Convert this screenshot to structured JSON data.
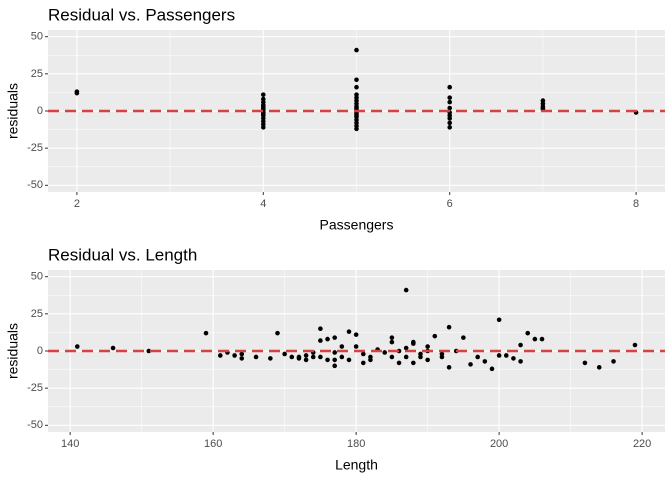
{
  "chart_data": [
    {
      "type": "scatter",
      "title": "Residual vs. Passengers",
      "xlabel": "Passengers",
      "ylabel": "residuals",
      "x": [
        2,
        2,
        4,
        4,
        4,
        4,
        4,
        4,
        4,
        4,
        4,
        4,
        4,
        4,
        4,
        4,
        4,
        5,
        5,
        5,
        5,
        5,
        5,
        5,
        5,
        5,
        5,
        5,
        5,
        5,
        5,
        5,
        5,
        5,
        5,
        5,
        6,
        6,
        6,
        6,
        6,
        6,
        6,
        6,
        6,
        7,
        7,
        7,
        7,
        7,
        8
      ],
      "values": [
        13,
        12,
        11,
        8,
        6,
        4,
        3,
        2,
        1,
        0,
        -1,
        -2,
        -3,
        -5,
        -7,
        -9,
        -11,
        41,
        21,
        16,
        11,
        9,
        7,
        5,
        3,
        2,
        1,
        0,
        -1,
        -2,
        -3,
        -4,
        -6,
        -8,
        -10,
        -12,
        16,
        9,
        6,
        2,
        -1,
        -3,
        -5,
        -8,
        -11,
        7,
        5,
        3,
        2,
        1,
        -1
      ],
      "color": "#000000",
      "hline": 0,
      "hline_color": "#d6423f",
      "xlim": [
        1.69,
        8.31
      ],
      "xticks": [
        2,
        4,
        6,
        8
      ],
      "ylim": [
        -54.5,
        54.5
      ],
      "yticks": [
        -50,
        -25,
        0,
        25,
        50
      ],
      "grid": true
    },
    {
      "type": "scatter",
      "title": "Residual vs. Length",
      "xlabel": "Length",
      "ylabel": "residuals",
      "x": [
        141,
        146,
        151,
        159,
        161,
        162,
        163,
        164,
        164,
        166,
        168,
        169,
        170,
        171,
        172,
        172,
        173,
        173,
        174,
        174,
        175,
        175,
        175,
        176,
        176,
        177,
        177,
        177,
        177,
        178,
        178,
        179,
        179,
        180,
        180,
        181,
        181,
        182,
        182,
        183,
        184,
        185,
        185,
        185,
        186,
        186,
        187,
        187,
        187,
        188,
        188,
        188,
        189,
        189,
        190,
        190,
        190,
        191,
        192,
        192,
        193,
        193,
        194,
        195,
        196,
        197,
        198,
        199,
        200,
        200,
        201,
        202,
        203,
        203,
        204,
        205,
        206,
        212,
        214,
        216,
        219
      ],
      "values": [
        3,
        2,
        0,
        12,
        -3,
        -1,
        -3,
        -2,
        -5,
        -4,
        -5,
        12,
        -2,
        -4,
        -4,
        -5,
        -3,
        -6,
        -4,
        -1,
        15,
        7,
        -4,
        8,
        -6,
        9,
        -1,
        -6,
        -10,
        3,
        -4,
        13,
        -6,
        11,
        3,
        -2,
        -8,
        -4,
        -6,
        1,
        -1,
        6,
        9,
        -4,
        0,
        -8,
        41,
        -4,
        2,
        6,
        5,
        -8,
        -2,
        -4,
        0,
        3,
        -6,
        10,
        -4,
        -2,
        16,
        -11,
        0,
        9,
        -9,
        -4,
        -7,
        -12,
        21,
        -3,
        -3,
        -5,
        -7,
        4,
        12,
        8,
        8,
        -8,
        -11,
        -7,
        4
      ],
      "color": "#000000",
      "hline": 0,
      "hline_color": "#d6423f",
      "xlim": [
        136.9,
        223.2
      ],
      "xticks": [
        140,
        160,
        180,
        200,
        220
      ],
      "ylim": [
        -54.5,
        54.5
      ],
      "yticks": [
        -50,
        -25,
        0,
        25,
        50
      ],
      "grid": true
    }
  ]
}
